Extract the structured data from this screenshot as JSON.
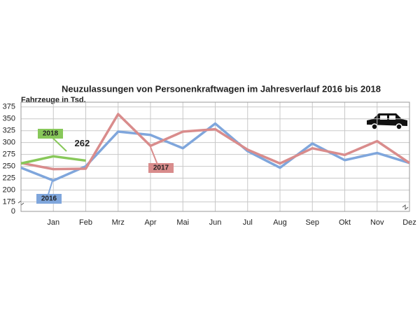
{
  "chart_data": {
    "type": "line",
    "title": "Neuzulassungen von Personenkraftwagen im Jahresverlauf 2016 bis 2018",
    "y_label": "Fahrzeuge in Tsd.",
    "categories": [
      null,
      "Jan",
      "Feb",
      "Mrz",
      "Apr",
      "Mai",
      "Jun",
      "Jul",
      "Aug",
      "Sep",
      "Okt",
      "Nov",
      "Dez"
    ],
    "series": [
      {
        "name": "2016",
        "color": "#7fa6dc",
        "values": [
          247,
          220,
          250,
          323,
          316,
          288,
          340,
          282,
          247,
          298,
          263,
          278,
          257
        ]
      },
      {
        "name": "2017",
        "color": "#d98c8c",
        "values": [
          257,
          244,
          245,
          360,
          293,
          323,
          328,
          285,
          256,
          288,
          274,
          303,
          257
        ]
      },
      {
        "name": "2018",
        "color": "#88c85a",
        "values": [
          256,
          271,
          262,
          null,
          null,
          null,
          null,
          null,
          null,
          null,
          null,
          null,
          null
        ],
        "value_labels": [
          null,
          null,
          "262",
          null,
          null,
          null,
          null,
          null,
          null,
          null,
          null,
          null,
          null
        ]
      }
    ],
    "ylim": [
      155,
      385
    ],
    "yticks": [
      175,
      200,
      225,
      250,
      275,
      300,
      325,
      350,
      375
    ],
    "axis_break_label": "0",
    "grid": true
  }
}
